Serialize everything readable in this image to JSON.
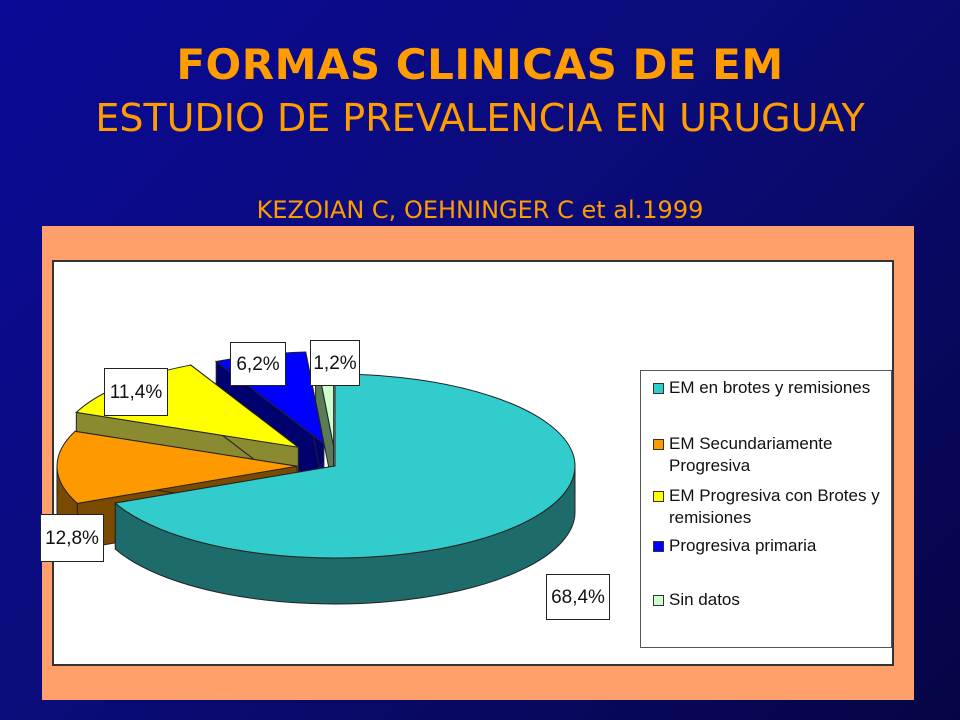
{
  "slide": {
    "title": "FORMAS CLINICAS DE EM",
    "subtitle": "ESTUDIO DE PREVALENCIA EN URUGUAY",
    "citation": "KEZOIAN C, OEHNINGER C et al.1999"
  },
  "colors": {
    "title": "#ff9d00",
    "background": "#0b0b7a",
    "panel": "#ff9f6c"
  },
  "chart_data": {
    "type": "pie",
    "style": "3d-exploded",
    "title": "",
    "legend_position": "right",
    "series": [
      {
        "name": "EM en brotes y remisiones",
        "value": 68.4,
        "label": "68,4%",
        "color": "#33cccc",
        "side_color": "#1e6b6b"
      },
      {
        "name": "EM Secundariamente Progresiva",
        "value": 12.8,
        "label": "12,8%",
        "color": "#ff9900",
        "side_color": "#7a4a00"
      },
      {
        "name": "EM Progresiva con Brotes y remisiones",
        "value": 11.4,
        "label": "11,4%",
        "color": "#ffff00",
        "side_color": "#8a8a30"
      },
      {
        "name": "Progresiva primaria",
        "value": 6.2,
        "label": "6,2%",
        "color": "#0000ff",
        "side_color": "#00006e"
      },
      {
        "name": "Sin datos",
        "value": 1.2,
        "label": "1,2%",
        "color": "#ccffcc",
        "side_color": "#5a7a5a"
      }
    ]
  }
}
